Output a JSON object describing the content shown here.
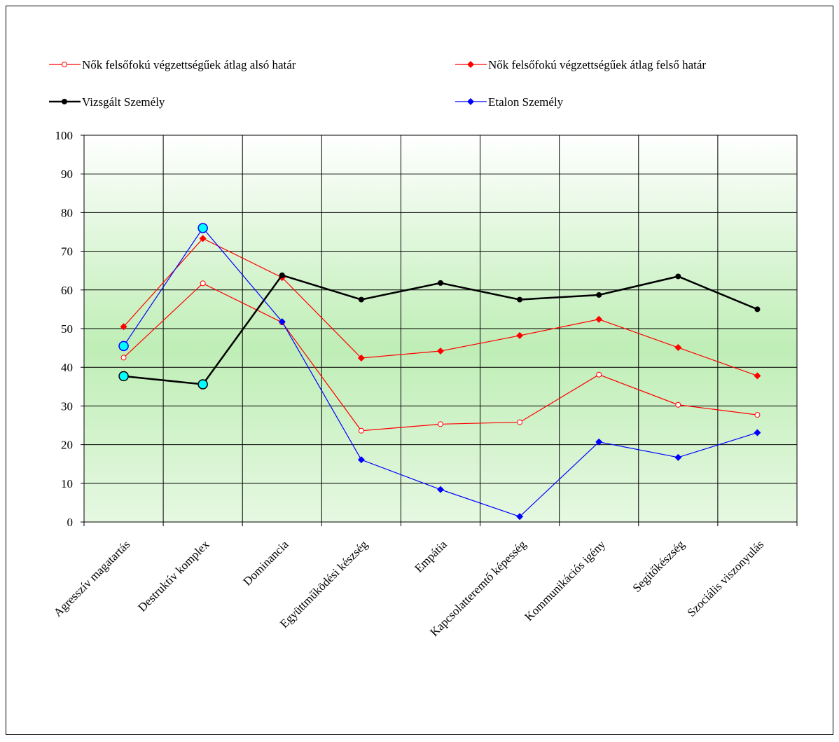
{
  "chart_data": {
    "type": "line",
    "categories": [
      "Agresszív magatartás",
      "Destruktív komplex",
      "Dominancia",
      "Együttműködési készség",
      "Empátia",
      "Kapcsolatteremtő képesség",
      "Kommunikációs igény",
      "Segítőkészség",
      "Szociális viszonyulás"
    ],
    "series": [
      {
        "name": "Nők felsőfokú végzettségűek átlag alsó határ",
        "color": "#ff0000",
        "marker": "open-circle",
        "values": [
          42.5,
          61.7,
          51.6,
          23.6,
          25.3,
          25.8,
          38.1,
          30.3,
          27.7
        ]
      },
      {
        "name": "Nők felsőfokú végzettségűek átlag felső határ",
        "color": "#ff0000",
        "marker": "diamond",
        "values": [
          50.5,
          73.3,
          63.2,
          42.4,
          44.2,
          48.2,
          52.4,
          45.1,
          37.8
        ]
      },
      {
        "name": "Vizsgált Személy",
        "color": "#000000",
        "marker": "circle",
        "values": [
          37.7,
          35.6,
          63.8,
          57.5,
          61.8,
          57.5,
          58.7,
          63.5,
          55.0
        ],
        "highlight_points": [
          0,
          1
        ],
        "highlight_color": "#00ffff"
      },
      {
        "name": "Etalon  Személy",
        "color": "#0000ff",
        "marker": "diamond",
        "values": [
          45.5,
          76.0,
          51.8,
          16.1,
          8.4,
          1.4,
          20.7,
          16.7,
          23.1
        ],
        "highlight_points": [
          0,
          1
        ],
        "highlight_color": "#00ffff"
      }
    ],
    "ylim": [
      0,
      100
    ],
    "yticks": [
      0,
      10,
      20,
      30,
      40,
      50,
      60,
      70,
      80,
      90,
      100
    ],
    "grid": true,
    "legend": "top"
  }
}
